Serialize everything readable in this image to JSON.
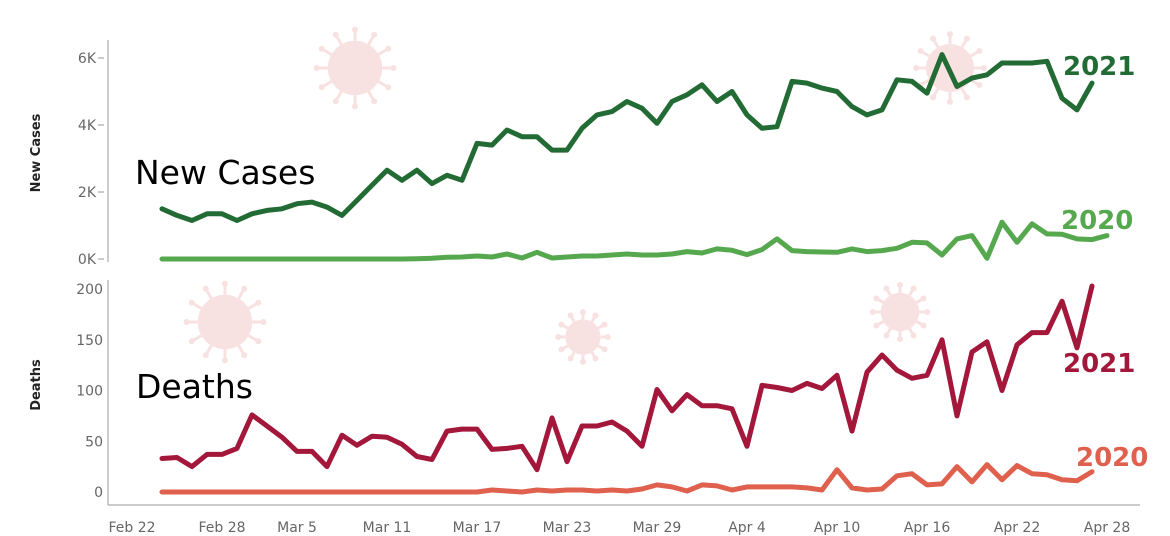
{
  "colors": {
    "cases_2021": "#236b34",
    "cases_2020": "#56a84e",
    "deaths_2021": "#a3173a",
    "deaths_2020": "#e0604e",
    "axis": "#999999",
    "virus_decoration": "#f4c9c9"
  },
  "chart_data": [
    {
      "type": "line",
      "panel_label": "New Cases",
      "ylabel": "New Cases",
      "yticks": [
        "0K",
        "2K",
        "4K",
        "6K"
      ],
      "ylim": [
        0,
        6500
      ],
      "x_dates": [
        "Feb 22",
        "Feb 23",
        "Feb 24",
        "Feb 25",
        "Feb 26",
        "Feb 27",
        "Feb 28",
        "Mar 1",
        "Mar 2",
        "Mar 3",
        "Mar 4",
        "Mar 5",
        "Mar 6",
        "Mar 7",
        "Mar 8",
        "Mar 9",
        "Mar 10",
        "Mar 11",
        "Mar 12",
        "Mar 13",
        "Mar 14",
        "Mar 15",
        "Mar 16",
        "Mar 17",
        "Mar 18",
        "Mar 19",
        "Mar 20",
        "Mar 21",
        "Mar 22",
        "Mar 23",
        "Mar 24",
        "Mar 25",
        "Mar 26",
        "Mar 27",
        "Mar 28",
        "Mar 29",
        "Mar 30",
        "Mar 31",
        "Apr 1",
        "Apr 2",
        "Apr 3",
        "Apr 4",
        "Apr 5",
        "Apr 6",
        "Apr 7",
        "Apr 8",
        "Apr 9",
        "Apr 10",
        "Apr 11",
        "Apr 12",
        "Apr 13",
        "Apr 14",
        "Apr 15",
        "Apr 16",
        "Apr 17",
        "Apr 18",
        "Apr 19",
        "Apr 20",
        "Apr 21",
        "Apr 22",
        "Apr 23",
        "Apr 24",
        "Apr 25",
        "Apr 26",
        "Apr 27",
        "Apr 28"
      ],
      "xticks": [
        "Feb 22",
        "Feb 28",
        "Mar 5",
        "Mar 11",
        "Mar 17",
        "Mar 23",
        "Mar 29",
        "Apr 4",
        "Apr 10",
        "Apr 16",
        "Apr 22",
        "Apr 28"
      ],
      "series": [
        {
          "name": "2021",
          "start_date": "Feb 24",
          "values": [
            1500,
            1300,
            1150,
            1350,
            1350,
            1150,
            1350,
            1450,
            1500,
            1650,
            1700,
            1550,
            1300,
            1750,
            2200,
            2650,
            2350,
            2650,
            2250,
            2500,
            2350,
            3450,
            3400,
            3850,
            3650,
            3650,
            3250,
            3250,
            3900,
            4300,
            4400,
            4700,
            4500,
            4050,
            4700,
            4900,
            5200,
            4700,
            5000,
            4300,
            3900,
            3950,
            5300,
            5250,
            5100,
            5000,
            4550,
            4300,
            4450,
            5350,
            5300,
            4950,
            6100,
            5150,
            5400,
            5500,
            5850,
            5850,
            5850,
            5900,
            4800,
            4450,
            5250
          ]
        },
        {
          "name": "2020",
          "start_date": "Feb 24",
          "values": [
            0,
            0,
            0,
            0,
            0,
            0,
            0,
            0,
            0,
            0,
            0,
            0,
            0,
            0,
            0,
            0,
            0,
            10,
            20,
            50,
            60,
            90,
            60,
            150,
            30,
            200,
            30,
            60,
            90,
            90,
            120,
            150,
            120,
            120,
            150,
            220,
            180,
            300,
            260,
            130,
            280,
            600,
            250,
            220,
            210,
            200,
            300,
            220,
            250,
            320,
            500,
            480,
            120,
            600,
            700,
            20,
            1100,
            500,
            1050,
            750,
            740,
            600,
            580,
            700
          ]
        }
      ]
    },
    {
      "type": "line",
      "panel_label": "Deaths",
      "ylabel": "Deaths",
      "yticks": [
        "0",
        "50",
        "100",
        "150",
        "200"
      ],
      "ylim": [
        -10,
        210
      ],
      "xticks": [
        "Feb 22",
        "Feb 28",
        "Mar 5",
        "Mar 11",
        "Mar 17",
        "Mar 23",
        "Mar 29",
        "Apr 4",
        "Apr 10",
        "Apr 16",
        "Apr 22",
        "Apr 28"
      ],
      "series": [
        {
          "name": "2021",
          "start_date": "Feb 24",
          "values": [
            33,
            34,
            25,
            37,
            37,
            43,
            76,
            65,
            54,
            40,
            40,
            25,
            56,
            46,
            55,
            54,
            47,
            35,
            32,
            60,
            62,
            62,
            42,
            43,
            45,
            22,
            73,
            30,
            65,
            65,
            69,
            60,
            45,
            101,
            80,
            96,
            85,
            85,
            82,
            45,
            105,
            103,
            100,
            107,
            102,
            115,
            60,
            118,
            135,
            120,
            112,
            115,
            150,
            75,
            138,
            148,
            100,
            145,
            157,
            157,
            188,
            142,
            203
          ]
        },
        {
          "name": "2020",
          "start_date": "Feb 24",
          "values": [
            0,
            0,
            0,
            0,
            0,
            0,
            0,
            0,
            0,
            0,
            0,
            0,
            0,
            0,
            0,
            0,
            0,
            0,
            0,
            0,
            0,
            0,
            2,
            1,
            0,
            2,
            1,
            2,
            2,
            1,
            2,
            1,
            3,
            7,
            5,
            1,
            7,
            6,
            2,
            5,
            5,
            5,
            5,
            4,
            2,
            22,
            4,
            2,
            3,
            16,
            18,
            7,
            8,
            25,
            10,
            27,
            12,
            26,
            18,
            17,
            12,
            11,
            20
          ]
        }
      ]
    }
  ]
}
